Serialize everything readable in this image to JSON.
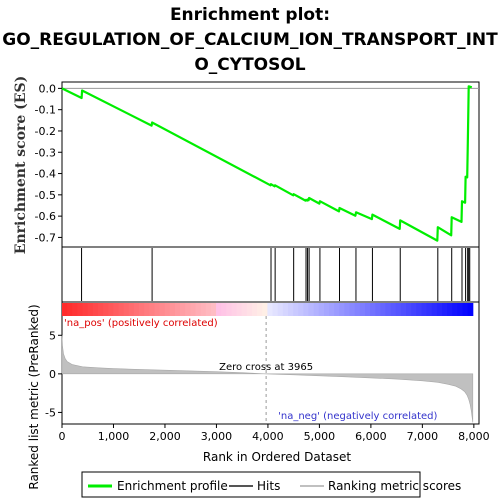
{
  "chart_data": {
    "type": "line",
    "title": [
      "Enrichment plot:",
      "GO_REGULATION_OF_CALCIUM_ION_TRANSPORT_INT",
      "O_CYTOSOL"
    ],
    "top_panel": {
      "ylabel": "Enrichment score (ES)",
      "yticks": [
        0.0,
        -0.1,
        -0.2,
        -0.3,
        -0.4,
        -0.5,
        -0.6,
        -0.7
      ],
      "ytick_labels": [
        "0.0",
        "-0.1",
        "-0.2",
        "-0.3",
        "-0.4",
        "-0.5",
        "-0.6",
        "-0.7"
      ],
      "ylim": [
        -0.745,
        0.03
      ],
      "series": [
        {
          "name": "Enrichment profile",
          "color": "#00ee00",
          "x": [
            0,
            380,
            390,
            1740,
            1750,
            4050,
            4060,
            4130,
            4140,
            4490,
            4500,
            4730,
            4740,
            4760,
            4770,
            4790,
            4800,
            5000,
            5010,
            5380,
            5390,
            5700,
            5710,
            6020,
            6030,
            6560,
            6570,
            7290,
            7300,
            7560,
            7570,
            7760,
            7770,
            7830,
            7840,
            7870,
            7880,
            7890,
            7900,
            7960
          ],
          "y": [
            0.0,
            -0.045,
            -0.01,
            -0.175,
            -0.16,
            -0.455,
            -0.45,
            -0.46,
            -0.455,
            -0.502,
            -0.497,
            -0.527,
            -0.524,
            -0.527,
            -0.522,
            -0.525,
            -0.515,
            -0.541,
            -0.53,
            -0.578,
            -0.562,
            -0.598,
            -0.582,
            -0.614,
            -0.593,
            -0.66,
            -0.62,
            -0.715,
            -0.652,
            -0.69,
            -0.605,
            -0.627,
            -0.53,
            -0.537,
            -0.415,
            -0.418,
            -0.287,
            -0.143,
            0.01,
            0.005
          ]
        }
      ]
    },
    "hits": {
      "name": "Hits",
      "positions": [
        380,
        1750,
        4060,
        4140,
        4500,
        4740,
        4770,
        4800,
        5010,
        5390,
        5710,
        6030,
        6570,
        7300,
        7570,
        7770,
        7840,
        7880,
        7900,
        7920
      ]
    },
    "ranked_metric": {
      "name": "Ranking metric scores",
      "ylabel": "Ranked list metric (PreRanked)",
      "yticks": [
        5,
        0,
        -5
      ],
      "ytick_labels": [
        "5",
        "0",
        "-5"
      ],
      "ylim": [
        -6.5,
        7.5
      ],
      "zero_cross": 3965,
      "zero_cross_label": "Zero cross at 3965",
      "pos_label": "'na_pos' (positively correlated)",
      "neg_label": "'na_neg' (negatively correlated)",
      "pos_color": "#ff0000",
      "neg_color": "#0000ff",
      "fill_color": "#c0c0c0",
      "curve_x": [
        0,
        10,
        30,
        60,
        100,
        200,
        400,
        700,
        1000,
        1500,
        2000,
        2500,
        3000,
        3500,
        3965,
        4500,
        5000,
        5500,
        6000,
        6500,
        7000,
        7300,
        7500,
        7650,
        7750,
        7820,
        7870,
        7900,
        7930,
        7950,
        7970,
        7980
      ],
      "curve_y": [
        5.0,
        3.6,
        2.6,
        2.0,
        1.6,
        1.2,
        0.92,
        0.78,
        0.68,
        0.58,
        0.48,
        0.38,
        0.28,
        0.15,
        0.0,
        -0.12,
        -0.25,
        -0.38,
        -0.52,
        -0.68,
        -0.9,
        -1.1,
        -1.35,
        -1.6,
        -1.95,
        -2.3,
        -2.8,
        -3.3,
        -4.0,
        -4.8,
        -5.8,
        -6.3
      ]
    },
    "xaxis": {
      "label": "Rank in Ordered Dataset",
      "ticks": [
        0,
        1000,
        2000,
        3000,
        4000,
        5000,
        6000,
        7000,
        8000
      ],
      "tick_labels": [
        "0",
        "1,000",
        "2,000",
        "3,000",
        "4,000",
        "5,000",
        "6,000",
        "7,000",
        "8,000"
      ],
      "xlim": [
        0,
        8100
      ]
    },
    "legend": {
      "placement": "bottom",
      "items": [
        {
          "label": "Enrichment profile",
          "color": "#00ee00"
        },
        {
          "label": "Hits",
          "color": "#555555"
        },
        {
          "label": "Ranking metric scores",
          "color": "#c0c0c0"
        }
      ]
    }
  }
}
